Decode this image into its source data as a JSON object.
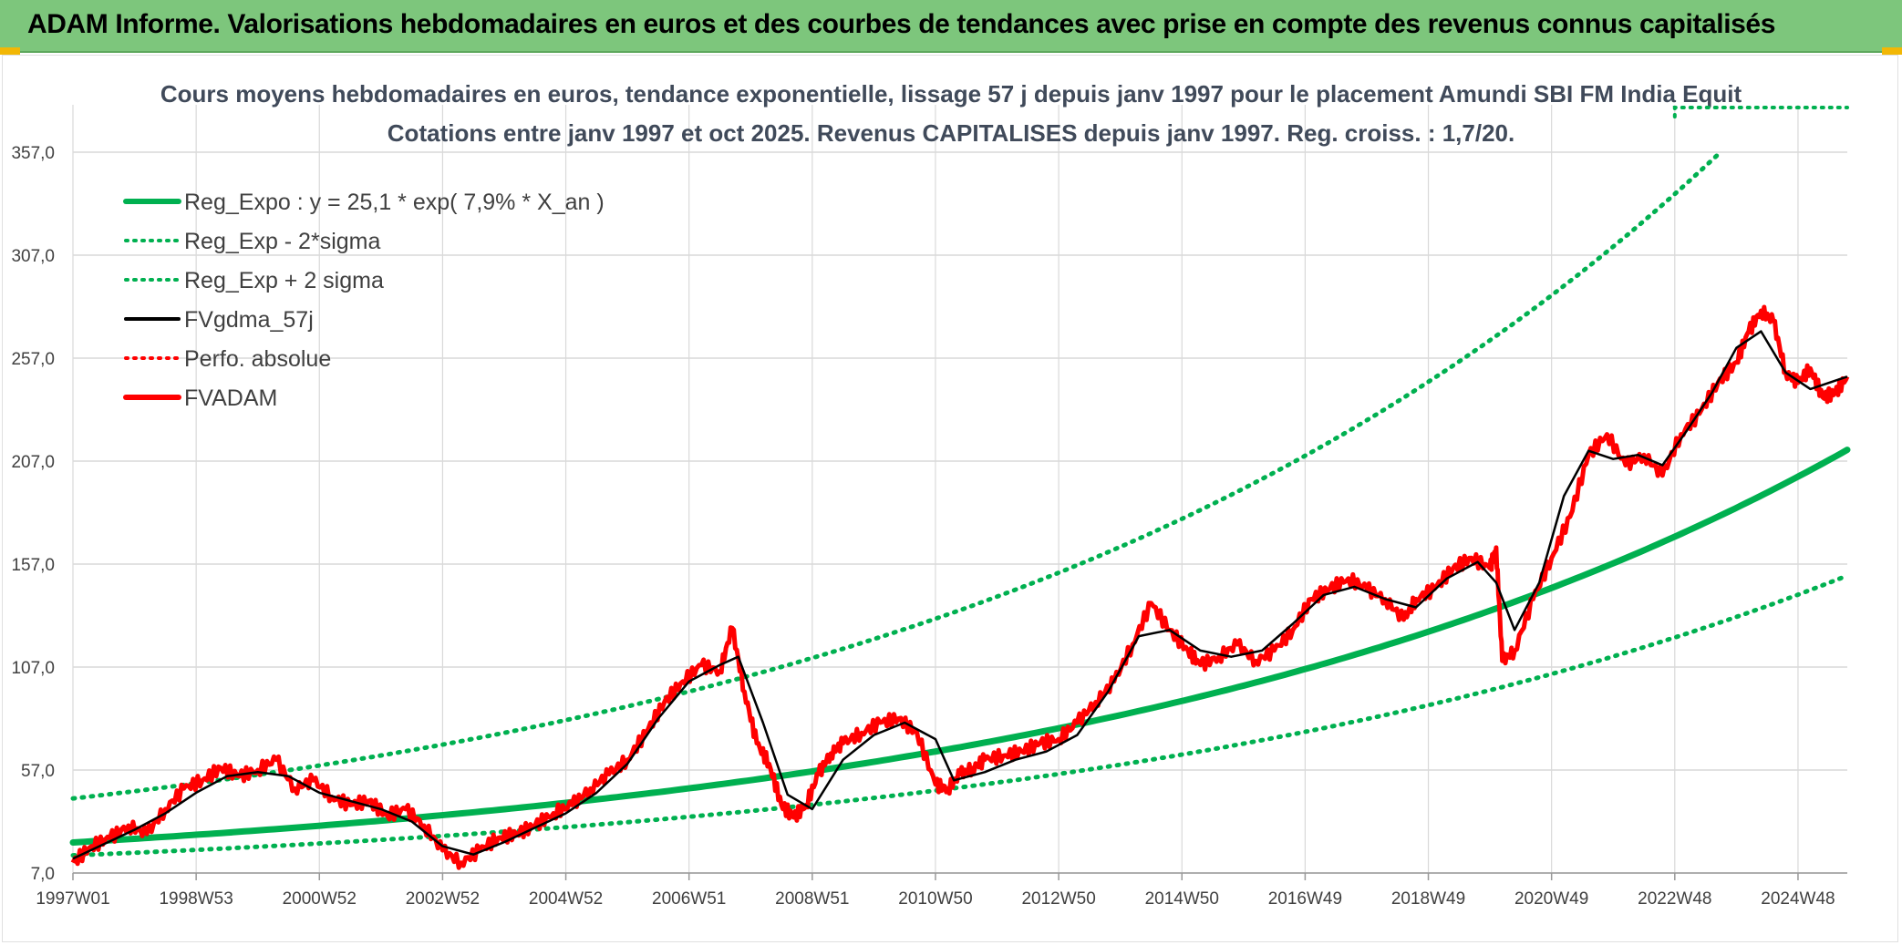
{
  "banner": {
    "title": "ADAM Informe. Valorisations hebdomadaires en euros et des courbes de tendances avec prise en compte des revenus connus capitalisés"
  },
  "colors": {
    "banner_bg": "#7dc67c",
    "reg_expo": "#00b050",
    "sigma": "#00b050",
    "gdma": "#000000",
    "perfo": "#ff0000",
    "fvadam": "#ff0000",
    "grid": "#d9d9d9"
  },
  "chart_data": {
    "type": "line",
    "title_line1": "Cours moyens hebdomadaires en euros, tendance exponentielle, lissage 57 j depuis janv 1997 pour le placement Amundi SBI FM India Equit",
    "title_line2": "Cotations entre janv 1997 et oct 2025. Revenus CAPITALISES depuis janv 1997. Reg. croiss. : 1,7/20.",
    "xlabel": "",
    "ylabel": "",
    "ylim": [
      7,
      380
    ],
    "xlim": [
      1997.0,
      2025.8
    ],
    "y_ticks": [
      {
        "value": 7,
        "label": "7,0"
      },
      {
        "value": 57,
        "label": "57,0"
      },
      {
        "value": 107,
        "label": "107,0"
      },
      {
        "value": 157,
        "label": "157,0"
      },
      {
        "value": 207,
        "label": "207,0"
      },
      {
        "value": 257,
        "label": "257,0"
      },
      {
        "value": 307,
        "label": "307,0"
      },
      {
        "value": 357,
        "label": "357,0"
      }
    ],
    "x_ticks": [
      {
        "value": 1997.0,
        "label": "1997W01"
      },
      {
        "value": 1999.0,
        "label": "1998W53"
      },
      {
        "value": 2001.0,
        "label": "2000W52"
      },
      {
        "value": 2003.0,
        "label": "2002W52"
      },
      {
        "value": 2005.0,
        "label": "2004W52"
      },
      {
        "value": 2007.0,
        "label": "2006W51"
      },
      {
        "value": 2009.0,
        "label": "2008W51"
      },
      {
        "value": 2011.0,
        "label": "2010W50"
      },
      {
        "value": 2013.0,
        "label": "2012W50"
      },
      {
        "value": 2015.0,
        "label": "2014W50"
      },
      {
        "value": 2017.0,
        "label": "2016W49"
      },
      {
        "value": 2019.0,
        "label": "2018W49"
      },
      {
        "value": 2021.0,
        "label": "2020W49"
      },
      {
        "value": 2023.0,
        "label": "2022W48"
      },
      {
        "value": 2025.0,
        "label": "2024W48"
      }
    ],
    "legend": [
      {
        "id": "reg_expo",
        "label": "Reg_Expo : y = 25,1 * exp( 7,9% *  X_an )",
        "style": "solid-thick",
        "color": "#00b050"
      },
      {
        "id": "sigma_minus",
        "label": "Reg_Exp - 2*sigma",
        "style": "dotted",
        "color": "#00b050"
      },
      {
        "id": "sigma_plus",
        "label": "Reg_Exp + 2 sigma",
        "style": "dotted",
        "color": "#00b050"
      },
      {
        "id": "gdma",
        "label": "FVgdma_57j",
        "style": "solid",
        "color": "#000000"
      },
      {
        "id": "perfo",
        "label": "Perfo. absolue",
        "style": "dotted",
        "color": "#ff0000"
      },
      {
        "id": "fvadam",
        "label": "FVADAM",
        "style": "solid-thick",
        "color": "#ff0000"
      }
    ],
    "reg_expo": {
      "a": 25.1,
      "rate": 0.079,
      "start_year": 1997.0
    },
    "sigma_bands": {
      "lower_factor": 0.62,
      "upper_factor": 1.72,
      "cap_value": 380,
      "cap_label": ""
    },
    "series": [
      {
        "name": "FVADAM",
        "x": [
          1997.0,
          1997.3,
          1997.6,
          1997.9,
          1998.2,
          1998.5,
          1998.8,
          1999.1,
          1999.4,
          1999.7,
          2000.0,
          2000.3,
          2000.6,
          2000.9,
          2001.2,
          2001.5,
          2001.8,
          2002.1,
          2002.4,
          2002.7,
          2003.0,
          2003.3,
          2003.6,
          2003.9,
          2004.2,
          2004.5,
          2004.8,
          2005.1,
          2005.4,
          2005.7,
          2006.0,
          2006.3,
          2006.6,
          2006.9,
          2007.2,
          2007.5,
          2007.7,
          2007.9,
          2008.1,
          2008.3,
          2008.5,
          2008.7,
          2008.9,
          2009.1,
          2009.3,
          2009.5,
          2009.8,
          2010.1,
          2010.4,
          2010.7,
          2011.0,
          2011.2,
          2011.4,
          2011.6,
          2011.8,
          2012.1,
          2012.4,
          2012.7,
          2013.0,
          2013.3,
          2013.6,
          2013.9,
          2014.2,
          2014.5,
          2014.8,
          2015.1,
          2015.3,
          2015.6,
          2015.9,
          2016.2,
          2016.5,
          2016.8,
          2017.1,
          2017.4,
          2017.7,
          2018.0,
          2018.3,
          2018.6,
          2018.8,
          2019.1,
          2019.4,
          2019.7,
          2020.0,
          2020.1,
          2020.2,
          2020.4,
          2020.7,
          2021.0,
          2021.3,
          2021.6,
          2021.9,
          2022.2,
          2022.5,
          2022.8,
          2023.1,
          2023.4,
          2023.7,
          2024.0,
          2024.2,
          2024.4,
          2024.6,
          2024.8,
          2025.0,
          2025.2,
          2025.4,
          2025.6,
          2025.8
        ],
        "values": [
          12,
          20,
          24,
          30,
          26,
          38,
          48,
          52,
          58,
          54,
          57,
          62,
          48,
          52,
          44,
          40,
          42,
          35,
          38,
          30,
          18,
          12,
          18,
          24,
          26,
          30,
          36,
          40,
          48,
          55,
          62,
          75,
          90,
          100,
          108,
          105,
          126,
          95,
          70,
          60,
          40,
          34,
          40,
          55,
          65,
          70,
          75,
          80,
          82,
          75,
          50,
          48,
          55,
          58,
          62,
          64,
          66,
          70,
          72,
          80,
          90,
          100,
          118,
          138,
          125,
          115,
          108,
          112,
          118,
          110,
          115,
          125,
          140,
          145,
          150,
          145,
          140,
          130,
          140,
          145,
          155,
          160,
          155,
          165,
          110,
          115,
          140,
          160,
          180,
          210,
          220,
          205,
          210,
          200,
          220,
          230,
          245,
          255,
          270,
          280,
          275,
          250,
          245,
          252,
          238,
          240,
          248
        ]
      },
      {
        "name": "FVgdma_57j",
        "x": [
          1997.0,
          1997.5,
          1998.0,
          1998.5,
          1999.0,
          1999.5,
          2000.0,
          2000.5,
          2001.0,
          2001.5,
          2002.0,
          2002.5,
          2003.0,
          2003.5,
          2004.0,
          2004.5,
          2005.0,
          2005.5,
          2006.0,
          2006.5,
          2007.0,
          2007.5,
          2007.8,
          2008.2,
          2008.6,
          2009.0,
          2009.5,
          2010.0,
          2010.5,
          2011.0,
          2011.3,
          2011.8,
          2012.3,
          2012.8,
          2013.3,
          2013.8,
          2014.3,
          2014.8,
          2015.3,
          2015.8,
          2016.3,
          2016.8,
          2017.3,
          2017.8,
          2018.3,
          2018.8,
          2019.3,
          2019.8,
          2020.1,
          2020.4,
          2020.8,
          2021.2,
          2021.6,
          2022.0,
          2022.4,
          2022.8,
          2023.2,
          2023.6,
          2024.0,
          2024.4,
          2024.8,
          2025.2,
          2025.6,
          2025.8
        ],
        "values": [
          14,
          21,
          28,
          36,
          46,
          54,
          56,
          54,
          46,
          42,
          38,
          32,
          20,
          16,
          22,
          29,
          36,
          46,
          60,
          82,
          100,
          108,
          112,
          80,
          45,
          38,
          62,
          74,
          80,
          72,
          52,
          56,
          62,
          66,
          74,
          95,
          122,
          125,
          115,
          112,
          115,
          128,
          142,
          146,
          140,
          136,
          150,
          158,
          148,
          125,
          148,
          190,
          212,
          208,
          210,
          205,
          222,
          240,
          262,
          270,
          250,
          242,
          246,
          248
        ]
      }
    ]
  }
}
